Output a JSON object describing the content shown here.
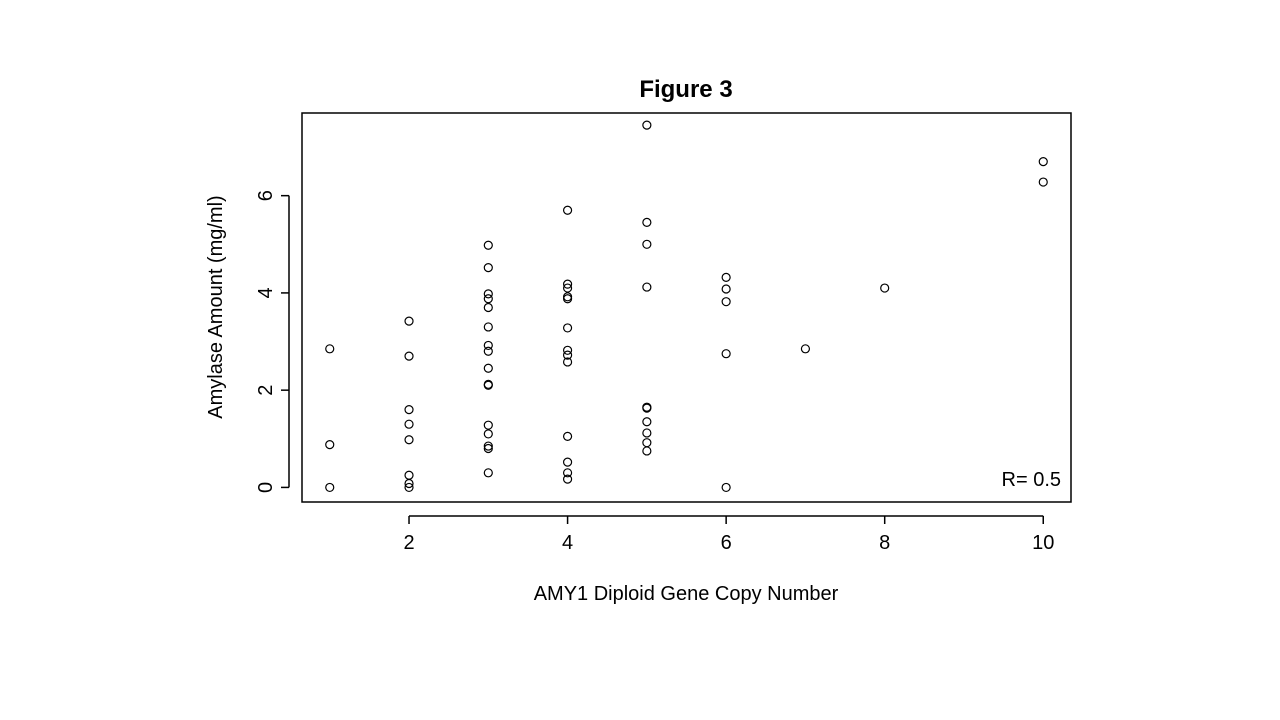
{
  "chart_data": {
    "type": "scatter",
    "title": "Figure 3",
    "xlabel": "AMY1 Diploid Gene Copy Number",
    "ylabel": "Amylase Amount (mg/ml)",
    "xlim": [
      0.65,
      10.35
    ],
    "ylim": [
      -0.3,
      7.7
    ],
    "xticks": [
      2,
      4,
      6,
      8,
      10
    ],
    "yticks": [
      0,
      2,
      4,
      6
    ],
    "grid": false,
    "legend": "none",
    "annotation": "R= 0.5",
    "point_style": "open-circle",
    "points": [
      {
        "x": 1,
        "y": 2.85
      },
      {
        "x": 1,
        "y": 0.88
      },
      {
        "x": 1,
        "y": 0.0
      },
      {
        "x": 2,
        "y": 3.42
      },
      {
        "x": 2,
        "y": 2.7
      },
      {
        "x": 2,
        "y": 1.6
      },
      {
        "x": 2,
        "y": 1.3
      },
      {
        "x": 2,
        "y": 0.98
      },
      {
        "x": 2,
        "y": 0.25
      },
      {
        "x": 2,
        "y": 0.08
      },
      {
        "x": 2,
        "y": 0.0
      },
      {
        "x": 3,
        "y": 4.98
      },
      {
        "x": 3,
        "y": 4.52
      },
      {
        "x": 3,
        "y": 3.98
      },
      {
        "x": 3,
        "y": 3.88
      },
      {
        "x": 3,
        "y": 3.7
      },
      {
        "x": 3,
        "y": 3.3
      },
      {
        "x": 3,
        "y": 2.92
      },
      {
        "x": 3,
        "y": 2.8
      },
      {
        "x": 3,
        "y": 2.45
      },
      {
        "x": 3,
        "y": 2.12
      },
      {
        "x": 3,
        "y": 2.1
      },
      {
        "x": 3,
        "y": 1.28
      },
      {
        "x": 3,
        "y": 1.1
      },
      {
        "x": 3,
        "y": 0.85
      },
      {
        "x": 3,
        "y": 0.8
      },
      {
        "x": 3,
        "y": 0.3
      },
      {
        "x": 4,
        "y": 5.7
      },
      {
        "x": 4,
        "y": 4.18
      },
      {
        "x": 4,
        "y": 4.1
      },
      {
        "x": 4,
        "y": 3.92
      },
      {
        "x": 4,
        "y": 3.88
      },
      {
        "x": 4,
        "y": 3.28
      },
      {
        "x": 4,
        "y": 2.82
      },
      {
        "x": 4,
        "y": 2.72
      },
      {
        "x": 4,
        "y": 2.58
      },
      {
        "x": 4,
        "y": 1.05
      },
      {
        "x": 4,
        "y": 0.52
      },
      {
        "x": 4,
        "y": 0.3
      },
      {
        "x": 4,
        "y": 0.17
      },
      {
        "x": 5,
        "y": 7.45
      },
      {
        "x": 5,
        "y": 5.45
      },
      {
        "x": 5,
        "y": 5.0
      },
      {
        "x": 5,
        "y": 4.12
      },
      {
        "x": 5,
        "y": 1.65
      },
      {
        "x": 5,
        "y": 1.63
      },
      {
        "x": 5,
        "y": 1.35
      },
      {
        "x": 5,
        "y": 1.12
      },
      {
        "x": 5,
        "y": 0.92
      },
      {
        "x": 5,
        "y": 0.75
      },
      {
        "x": 6,
        "y": 4.32
      },
      {
        "x": 6,
        "y": 4.08
      },
      {
        "x": 6,
        "y": 3.82
      },
      {
        "x": 6,
        "y": 2.75
      },
      {
        "x": 6,
        "y": 0.0
      },
      {
        "x": 7,
        "y": 2.85
      },
      {
        "x": 8,
        "y": 4.1
      },
      {
        "x": 10,
        "y": 6.7
      },
      {
        "x": 10,
        "y": 6.28
      }
    ]
  }
}
